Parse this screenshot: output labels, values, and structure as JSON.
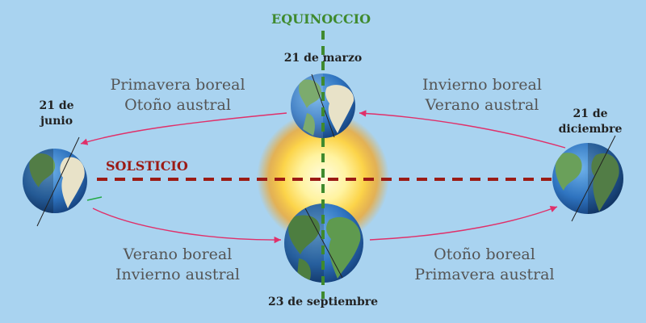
{
  "axes": {
    "equinox_label": "EQUINOCCIO",
    "solstice_label": "SOLSTICIO"
  },
  "dates": {
    "march": "21 de marzo",
    "june_line1": "21 de",
    "june_line2": "junio",
    "september": "23 de septiembre",
    "december_line1": "21 de",
    "december_line2": "diciembre"
  },
  "seasons": {
    "top_left": [
      "Primavera boreal",
      "Otoño austral"
    ],
    "top_right": [
      "Invierno boreal",
      "Verano austral"
    ],
    "bottom_left": [
      "Verano boreal",
      "Invierno austral"
    ],
    "bottom_right": [
      "Otoño boreal",
      "Primavera austral"
    ]
  },
  "colors": {
    "background": "#a9d3f0",
    "equinox_line": "#3f8a2e",
    "solstice_line": "#9b1b15",
    "orbit_arrow": "#e0306a",
    "sun_core": "#fff7b0",
    "sun_halo": "#f7a51f",
    "ocean": "#2f74c0",
    "land": "#6aa05a"
  }
}
